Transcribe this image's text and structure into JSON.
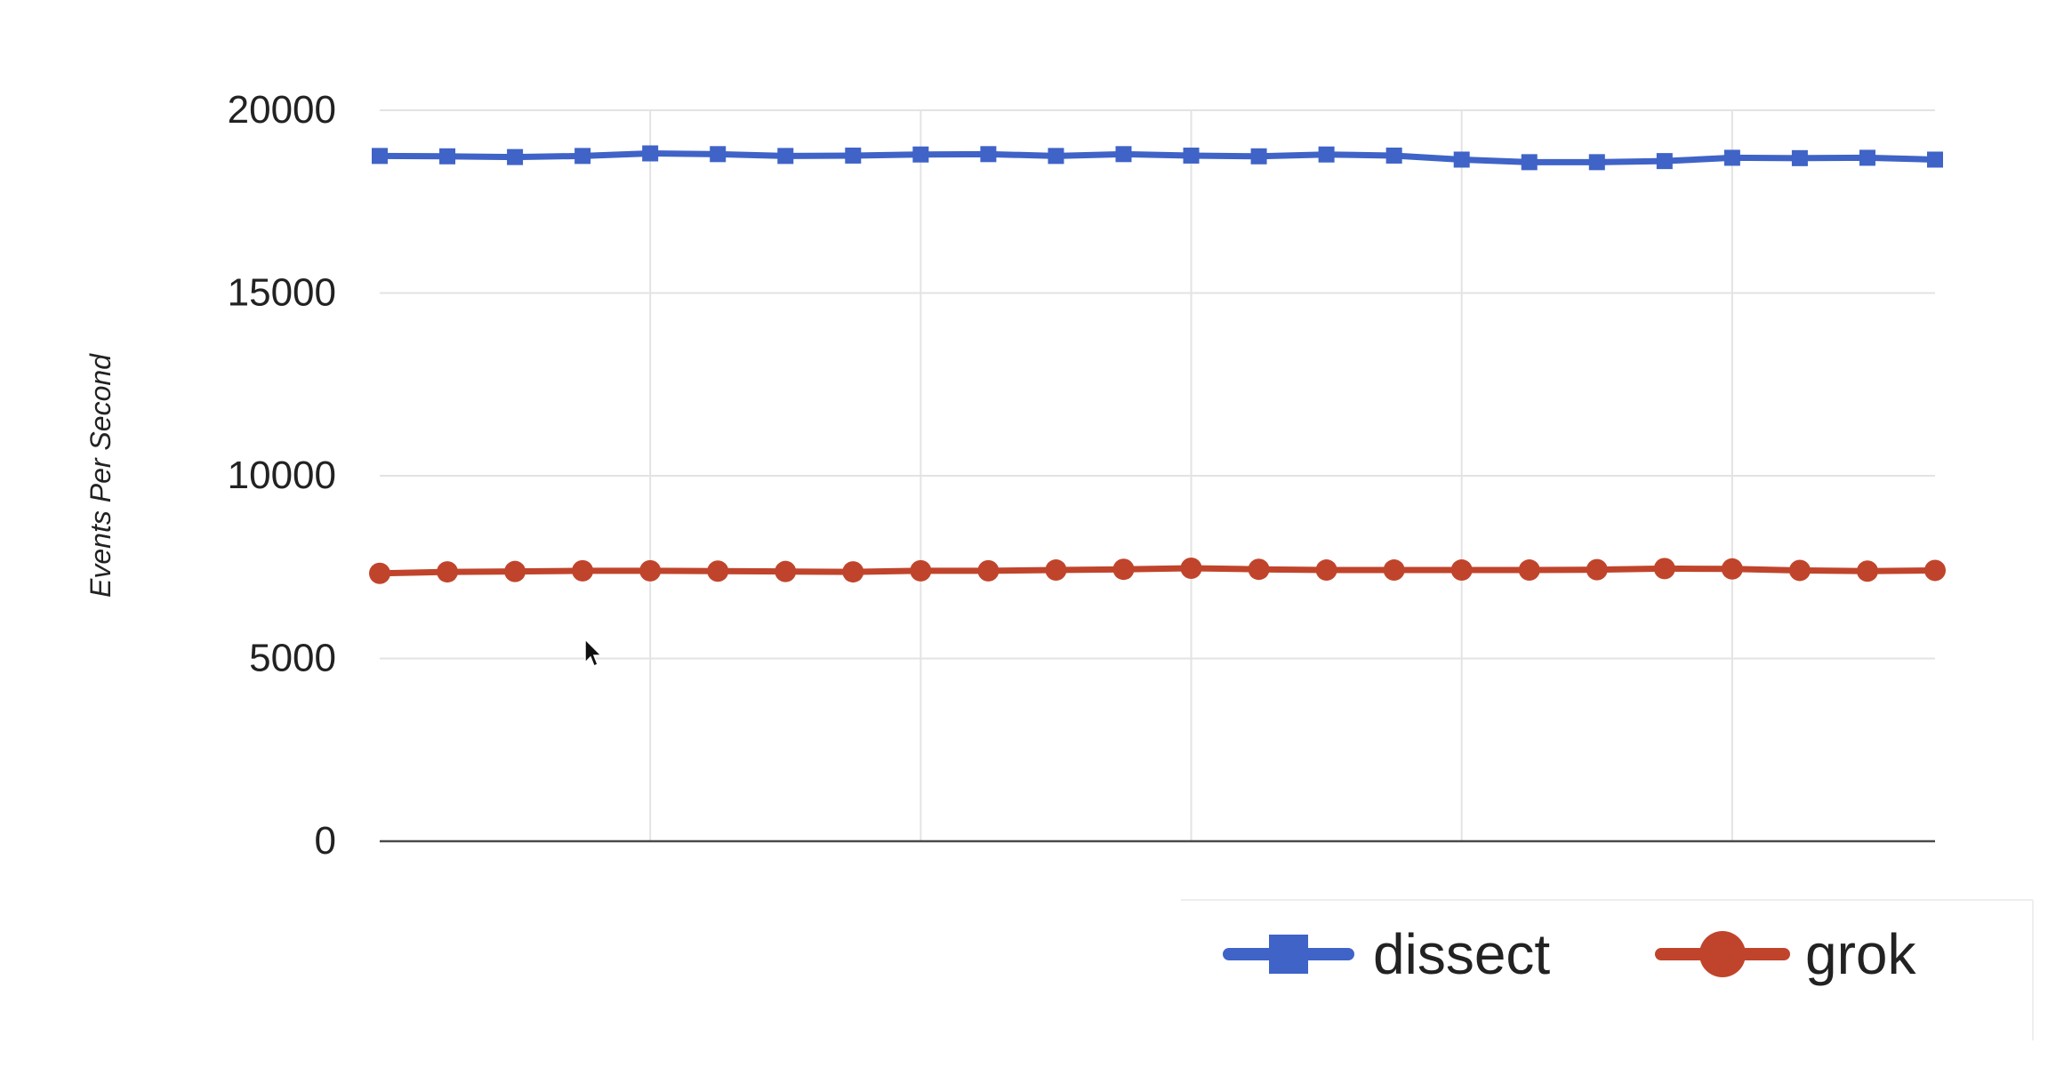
{
  "chart_data": {
    "type": "line",
    "title": "",
    "xlabel": "",
    "ylabel": "Events Per Second",
    "ylim": [
      0,
      20000
    ],
    "yticks": [
      "0",
      "5000",
      "10000",
      "15000",
      "20000"
    ],
    "x": [
      1,
      2,
      3,
      4,
      5,
      6,
      7,
      8,
      9,
      10,
      11,
      12,
      13,
      14,
      15,
      16,
      17,
      18,
      19,
      20,
      21,
      22,
      23,
      24
    ],
    "xlim": [
      1,
      24
    ],
    "x_gridlines": [
      5,
      9,
      13,
      17,
      21
    ],
    "grid": true,
    "legend_position": "bottom-right",
    "series": [
      {
        "name": "dissect",
        "color": "#3f63c7",
        "marker": "square",
        "values": [
          18750,
          18740,
          18720,
          18750,
          18820,
          18800,
          18750,
          18760,
          18790,
          18800,
          18750,
          18800,
          18760,
          18740,
          18790,
          18760,
          18650,
          18580,
          18580,
          18610,
          18700,
          18690,
          18700,
          18650
        ]
      },
      {
        "name": "grok",
        "color": "#c0442b",
        "marker": "circle",
        "values": [
          7330,
          7370,
          7380,
          7400,
          7400,
          7390,
          7380,
          7370,
          7400,
          7400,
          7420,
          7440,
          7470,
          7440,
          7420,
          7420,
          7420,
          7420,
          7430,
          7460,
          7450,
          7410,
          7390,
          7410
        ]
      }
    ]
  }
}
